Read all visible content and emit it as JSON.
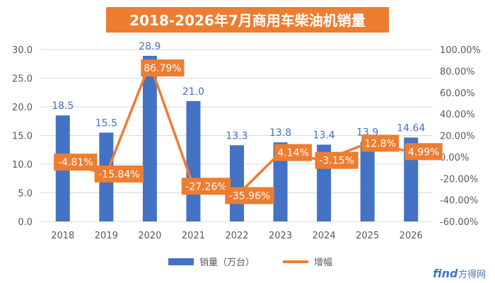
{
  "chart_data": {
    "type": "bar+line",
    "title": "2018-2026年7月商用车柴油机销量",
    "categories": [
      "2018",
      "2019",
      "2020",
      "2021",
      "2022",
      "2023",
      "2024",
      "2025",
      "2026"
    ],
    "series": [
      {
        "name": "销量（万台）",
        "type": "bar",
        "axis": "left",
        "values": [
          18.5,
          15.5,
          28.9,
          21.0,
          13.3,
          13.8,
          13.4,
          13.9,
          14.64
        ],
        "labels": [
          "18.5",
          "15.5",
          "28.9",
          "21.0",
          "13.3",
          "13.8",
          "13.4",
          "13.9",
          "14.64"
        ]
      },
      {
        "name": "增幅",
        "type": "line",
        "axis": "right",
        "values": [
          -4.81,
          -15.84,
          86.79,
          -27.26,
          -35.96,
          4.14,
          -3.15,
          12.8,
          4.99
        ],
        "labels": [
          "-4.81%",
          "-15.84%",
          "86.79%",
          "-27.26%",
          "-35.96%",
          "4.14%",
          "-3.15%",
          "12.8%",
          "4.99%"
        ]
      }
    ],
    "y_left": {
      "lim": [
        0,
        30
      ],
      "ticks": [
        0,
        5,
        10,
        15,
        20,
        25,
        30
      ],
      "tick_labels": [
        "0.0",
        "5.0",
        "10.0",
        "15.0",
        "20.0",
        "25.0",
        "30.0"
      ]
    },
    "y_right": {
      "lim": [
        -60,
        100
      ],
      "ticks": [
        -60,
        -40,
        -20,
        0,
        20,
        40,
        60,
        80,
        100
      ],
      "tick_labels": [
        "-60.00%",
        "-40.00%",
        "-20.00%",
        "0.00%",
        "20.00%",
        "40.00%",
        "60.00%",
        "80.00%",
        "100.00%"
      ]
    },
    "grid": true,
    "legend_position": "bottom"
  },
  "colors": {
    "bar": "#4472C4",
    "line": "#ED7D31",
    "label_box": "#ED7D31",
    "title_bg": "#ED7D31",
    "title_text": "#FFFFFF",
    "bar_label": "#4472C4",
    "axis_text": "#595959",
    "grid": "#D9D9D9"
  },
  "watermark": {
    "brand": "find",
    "cn": "方得网"
  }
}
